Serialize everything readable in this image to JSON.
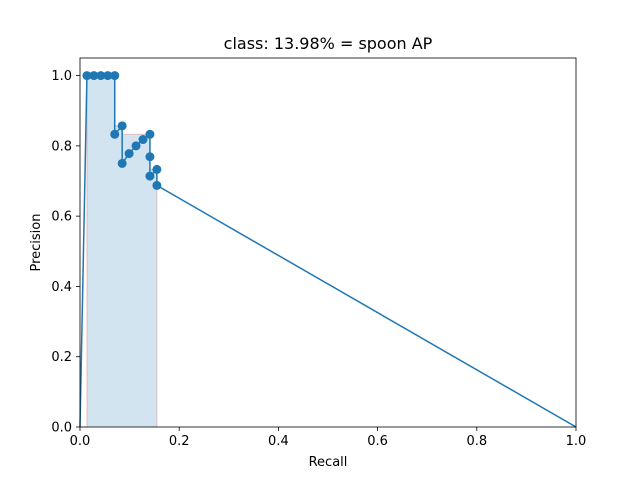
{
  "chart_data": {
    "type": "line",
    "title": "class: 13.98% = spoon AP",
    "xlabel": "Recall",
    "ylabel": "Precision",
    "xlim": [
      0,
      1
    ],
    "ylim": [
      0,
      1.05
    ],
    "xticks": [
      0.0,
      0.2,
      0.4,
      0.6,
      0.8,
      1.0
    ],
    "yticks": [
      0.0,
      0.2,
      0.4,
      0.6,
      0.8,
      1.0
    ],
    "xtick_labels": [
      "0.0",
      "0.2",
      "0.4",
      "0.6",
      "0.8",
      "1.0"
    ],
    "ytick_labels": [
      "0.0",
      "0.2",
      "0.4",
      "0.6",
      "0.8",
      "1.0"
    ],
    "grid": false,
    "line_color": "#1f77b4",
    "fill_color": "#1f77b4",
    "edge_color": "#d62728",
    "series": [
      {
        "x": [
          0.0,
          0.014,
          0.028,
          0.042,
          0.056,
          0.07,
          0.07,
          0.085,
          0.085,
          0.099,
          0.113,
          0.127,
          0.141,
          0.141,
          0.141,
          0.155,
          0.155,
          1.0
        ],
        "y": [
          0.0,
          1.0,
          1.0,
          1.0,
          1.0,
          1.0,
          0.833,
          0.857,
          0.75,
          0.778,
          0.8,
          0.818,
          0.833,
          0.769,
          0.714,
          0.733,
          0.6875,
          0.0
        ],
        "markers": [
          false,
          true,
          true,
          true,
          true,
          true,
          true,
          true,
          true,
          true,
          true,
          true,
          true,
          true,
          true,
          true,
          true,
          false
        ]
      }
    ],
    "interpolated_area": {
      "x": [
        0.0,
        0.014,
        0.014,
        0.07,
        0.07,
        0.085,
        0.085,
        0.141,
        0.141,
        0.155,
        0.155
      ],
      "y": [
        0.0,
        0.0,
        1.0,
        1.0,
        0.857,
        0.857,
        0.833,
        0.833,
        0.733,
        0.733,
        0.0
      ]
    }
  }
}
